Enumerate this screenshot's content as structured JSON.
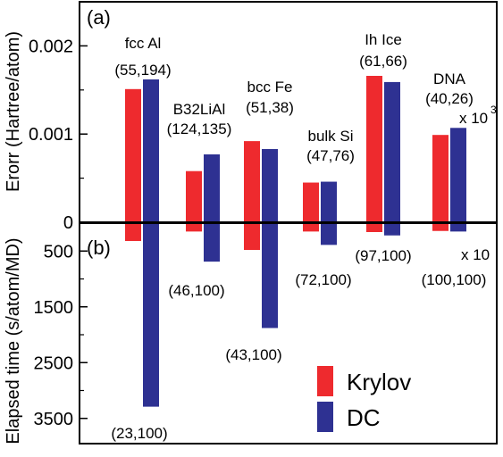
{
  "colors": {
    "krylov": "#ee2a2e",
    "dc": "#2e3192"
  },
  "chart_data": [
    {
      "type": "bar",
      "panel": "(a)",
      "ylabel": "Erorr (Hartree/atom)",
      "ylim": [
        0,
        0.0025
      ],
      "yticks": [
        {
          "value": 0,
          "label": "0"
        },
        {
          "value": 0.001,
          "label": "0.001"
        },
        {
          "value": 0.002,
          "label": "0.002"
        }
      ],
      "multiplier": {
        "text": "x 10",
        "sup": "3"
      },
      "categories": [
        "fcc Al",
        "B32LiAl",
        "bcc Fe",
        "bulk Si",
        "Ih Ice",
        "DNA"
      ],
      "annotations": [
        "(55,194)",
        "(124,135)",
        "(51,38)",
        "(47,76)",
        "(61,66)",
        "(40,26)"
      ],
      "series": [
        {
          "name": "Krylov",
          "values": [
            0.00151,
            0.00058,
            0.00092,
            0.00045,
            0.00166,
            0.00099
          ]
        },
        {
          "name": "DC",
          "values": [
            0.00162,
            0.00077,
            0.00083,
            0.00046,
            0.00159,
            0.00107
          ]
        }
      ]
    },
    {
      "type": "bar",
      "panel": "(b)",
      "ylabel": "Elapsed time (s/atom/MD)",
      "ylim": [
        0,
        3900
      ],
      "yinverted": true,
      "yticks": [
        {
          "value": 500,
          "label": "500"
        },
        {
          "value": 1500,
          "label": "1500"
        },
        {
          "value": 2500,
          "label": "2500"
        },
        {
          "value": 3500,
          "label": "3500"
        }
      ],
      "multiplier": {
        "text": "x 10"
      },
      "categories": [
        "fcc Al",
        "B32LiAl",
        "bcc Fe",
        "bulk Si",
        "Ih Ice",
        "DNA"
      ],
      "annotations": [
        "(23,100)",
        "(46,100)",
        "(43,100)",
        "(72,100)",
        "(97,100)",
        "(100,100)"
      ],
      "series": [
        {
          "name": "Krylov",
          "values": [
            320,
            150,
            480,
            150,
            160,
            140
          ]
        },
        {
          "name": "DC",
          "values": [
            3290,
            690,
            1880,
            390,
            220,
            150
          ]
        }
      ]
    }
  ],
  "legend": [
    {
      "label": "Krylov",
      "color": "#ee2a2e"
    },
    {
      "label": "DC",
      "color": "#2e3192"
    }
  ]
}
